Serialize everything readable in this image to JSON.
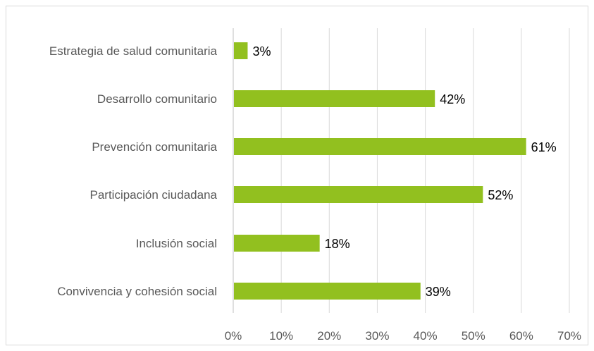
{
  "chart_data": {
    "type": "bar",
    "orientation": "horizontal",
    "title": "",
    "xlabel": "",
    "ylabel": "",
    "categories": [
      "Estrategia de salud comunitaria",
      "Desarrollo comunitario",
      "Prevención comunitaria",
      "Participación ciudadana",
      "Inclusión social",
      "Convivencia y cohesión social"
    ],
    "values": [
      3,
      42,
      61,
      52,
      18,
      39
    ],
    "data_labels": [
      "3%",
      "42%",
      "61%",
      "52%",
      "18%",
      "39%"
    ],
    "xlim": [
      0,
      70
    ],
    "x_ticks": [
      "0%",
      "10%",
      "20%",
      "30%",
      "40%",
      "50%",
      "60%",
      "70%"
    ],
    "grid": "vertical",
    "legend": "none",
    "bar_color": "#92c01f"
  }
}
